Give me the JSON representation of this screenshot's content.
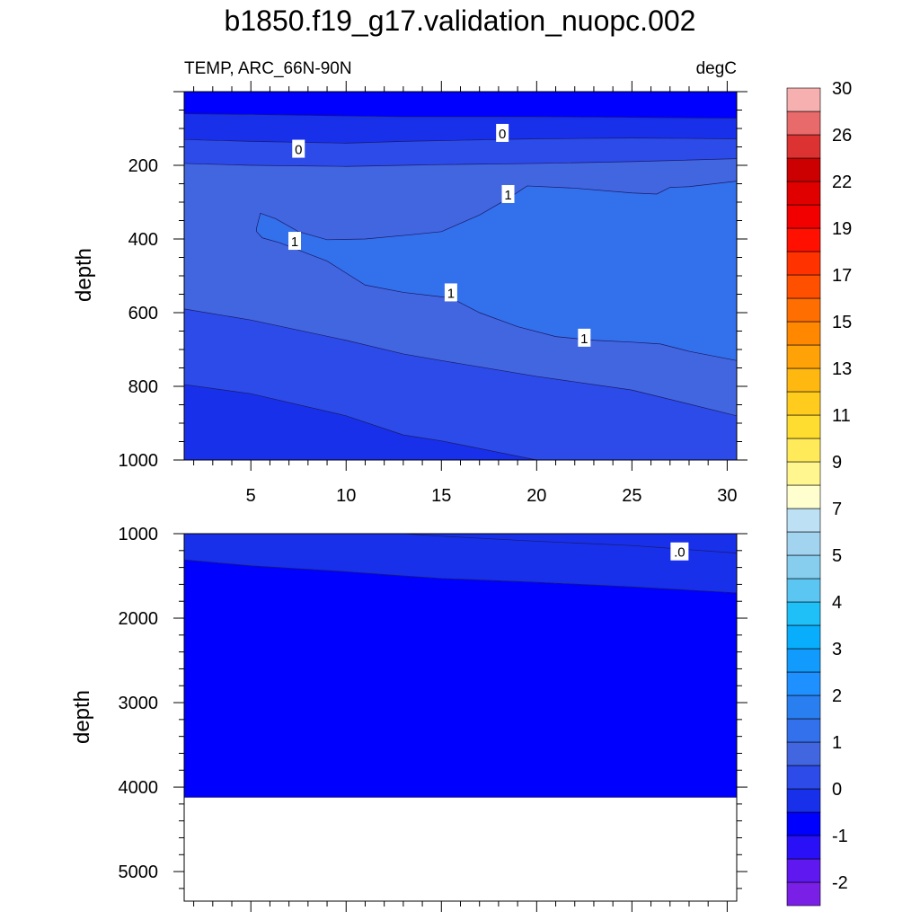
{
  "figure": {
    "title": "b1850.f19_g17.validation_nuopc.002",
    "left_string": "TEMP, ARC_66N-90N",
    "right_string": "degC"
  },
  "colors": {
    "missing": "#ffffff",
    "contour_line": "#1a1a66"
  },
  "chart_data": [
    {
      "type": "heatmap",
      "name": "upper-panel",
      "title": "",
      "xlabel": "",
      "ylabel": "depth",
      "xlim": [
        1.5,
        30.5
      ],
      "ylim": [
        1000,
        0
      ],
      "x_ticks": [
        5,
        10,
        15,
        20,
        25,
        30
      ],
      "x_tick_labels": [
        "5",
        "10",
        "15",
        "20",
        "25",
        "30"
      ],
      "y_ticks": [
        200,
        400,
        600,
        800,
        1000
      ],
      "y_tick_labels": [
        "200",
        "400",
        "600",
        "800",
        "1000"
      ],
      "contour_x": [
        1.5,
        5,
        10,
        13,
        15,
        20,
        25,
        30.5
      ],
      "regions_top_to_bottom": [
        {
          "range": "-1 to -0.5",
          "color": "#0000fe"
        },
        {
          "range": "-0.5 to 0",
          "color": "#1830ea"
        },
        {
          "range": "0 to 0.5",
          "color": "#2c4be8"
        },
        {
          "range": "0.5 to 1",
          "color": "#4266e0"
        },
        {
          "range": "1 to 1.5",
          "color": "#3370eb"
        },
        {
          "range": "0.5 to 1",
          "color": "#4266e0"
        },
        {
          "range": "0 to 0.5",
          "color": "#2c4be8"
        },
        {
          "range": "-0.5 to 0",
          "color": "#1830ea"
        }
      ],
      "contour_labels": [
        {
          "text": "0",
          "x": 7.5,
          "depth": 155
        },
        {
          "text": "0",
          "x": 18.2,
          "depth": 112
        },
        {
          "text": "1",
          "x": 18.5,
          "depth": 278
        },
        {
          "text": "1",
          "x": 7.3,
          "depth": 405
        },
        {
          "text": "1",
          "x": 15.5,
          "depth": 545
        },
        {
          "text": "1",
          "x": 22.5,
          "depth": 668
        }
      ]
    },
    {
      "type": "heatmap",
      "name": "lower-panel",
      "title": "",
      "xlabel": "",
      "ylabel": "depth",
      "xlim": [
        1.5,
        30.5
      ],
      "ylim": [
        5350,
        1000
      ],
      "y_ticks": [
        1000,
        2000,
        3000,
        4000,
        5000
      ],
      "y_tick_labels": [
        "1000",
        "2000",
        "3000",
        "4000",
        "5000"
      ],
      "bottom_of_data_depth": 4120,
      "regions_top_to_bottom": [
        {
          "range": "-0.5 to 0",
          "color": "#1830ea"
        },
        {
          "range": "-1 to -0.5",
          "color": "#0000fe"
        }
      ],
      "contour_labels": [
        {
          "text": ".0",
          "x": 27.5,
          "depth": 1210
        }
      ]
    },
    {
      "type": "colorbar",
      "name": "colorbar",
      "levels": [
        -2.5,
        -2,
        -1.5,
        -1,
        -0.5,
        0,
        0.5,
        1,
        1.5,
        2,
        2.5,
        3,
        3.5,
        4,
        4.5,
        5,
        6,
        7,
        8,
        9,
        10,
        11,
        12,
        13,
        14,
        15,
        16,
        17,
        18,
        19,
        20,
        22,
        24,
        26,
        28,
        30,
        32
      ],
      "colors": [
        "#7a20e6",
        "#5f18f0",
        "#2a10f6",
        "#0000fe",
        "#1830ea",
        "#2c4be8",
        "#4266e0",
        "#3370eb",
        "#2a7ff0",
        "#1e90ff",
        "#119cfd",
        "#08aefb",
        "#1fc0f8",
        "#5cc6f2",
        "#86cdee",
        "#a3d4ef",
        "#bde0f4",
        "#fefecf",
        "#fff690",
        "#ffeb5a",
        "#ffdc30",
        "#ffcc1e",
        "#ffb810",
        "#ffa208",
        "#ff8800",
        "#ff6e00",
        "#ff5000",
        "#ff3200",
        "#ff1000",
        "#f20000",
        "#e00000",
        "#cc0000",
        "#dd3232",
        "#e86a6a",
        "#f7b0b0"
      ],
      "tick_labels": [
        "-2",
        "-1",
        "0",
        "1",
        "2",
        "3",
        "4",
        "5",
        "7",
        "9",
        "11",
        "13",
        "15",
        "17",
        "19",
        "22",
        "26",
        "30"
      ]
    }
  ]
}
